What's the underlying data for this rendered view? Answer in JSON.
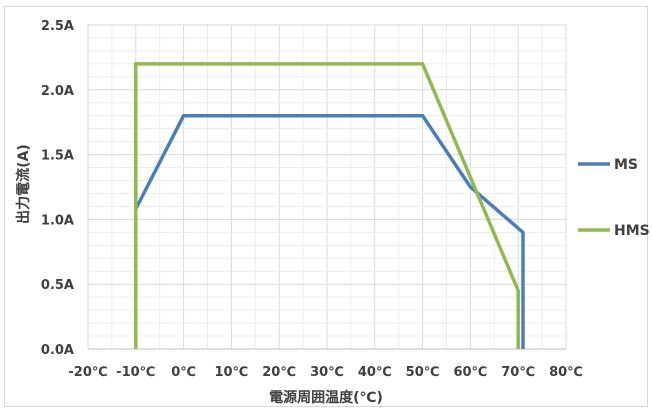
{
  "chart_data": {
    "type": "line",
    "title": "",
    "xlabel": "電源周囲温度(℃)",
    "ylabel": "出力電流(A)",
    "xlim": [
      -20,
      80
    ],
    "ylim": [
      0,
      2.5
    ],
    "x_ticks": [
      -20,
      -10,
      0,
      10,
      20,
      30,
      40,
      50,
      60,
      70,
      80
    ],
    "x_tick_labels": [
      "-20℃",
      "-10℃",
      "0℃",
      "10℃",
      "20℃",
      "30℃",
      "40℃",
      "50℃",
      "60℃",
      "70℃",
      "80℃"
    ],
    "y_ticks": [
      0,
      0.5,
      1.0,
      1.5,
      2.0,
      2.5
    ],
    "y_tick_labels": [
      "0.0A",
      "0.5A",
      "1.0A",
      "1.5A",
      "2.0A",
      "2.5A"
    ],
    "grid": true,
    "legend_position": "right",
    "series": [
      {
        "name": "MS",
        "color": "#4a7ebb",
        "points": [
          [
            -10,
            1.08
          ],
          [
            0,
            1.8
          ],
          [
            50,
            1.8
          ],
          [
            60,
            1.25
          ],
          [
            71,
            0.9
          ],
          [
            71,
            0
          ]
        ]
      },
      {
        "name": "HMS",
        "color": "#8fba4f",
        "points": [
          [
            -10,
            0
          ],
          [
            -10,
            2.2
          ],
          [
            50,
            2.2
          ],
          [
            70,
            0.45
          ],
          [
            70,
            0
          ]
        ]
      }
    ]
  }
}
